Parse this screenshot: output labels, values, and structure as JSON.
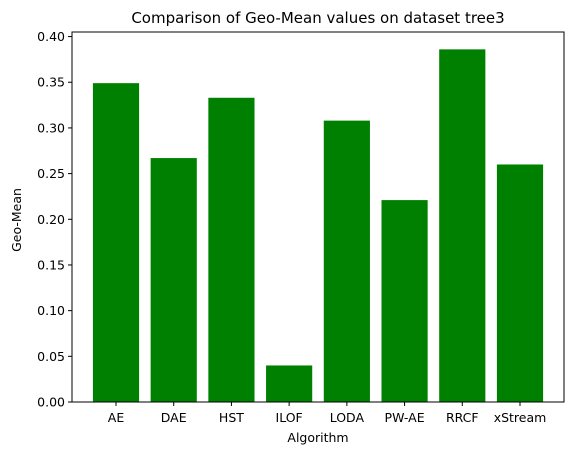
{
  "chart_data": {
    "type": "bar",
    "title": "Comparison of Geo-Mean values on dataset tree3",
    "xlabel": "Algorithm",
    "ylabel": "Geo-Mean",
    "categories": [
      "AE",
      "DAE",
      "HST",
      "ILOF",
      "LODA",
      "PW-AE",
      "RRCF",
      "xStream"
    ],
    "values": [
      0.349,
      0.267,
      0.333,
      0.04,
      0.308,
      0.221,
      0.386,
      0.26
    ],
    "yticks": [
      0.0,
      0.05,
      0.1,
      0.15,
      0.2,
      0.25,
      0.3,
      0.35,
      0.4
    ],
    "ytick_labels": [
      "0.00",
      "0.05",
      "0.10",
      "0.15",
      "0.20",
      "0.25",
      "0.30",
      "0.35",
      "0.40"
    ],
    "ylim": [
      0,
      0.405
    ],
    "grid": false,
    "bar_color": "#008000"
  }
}
